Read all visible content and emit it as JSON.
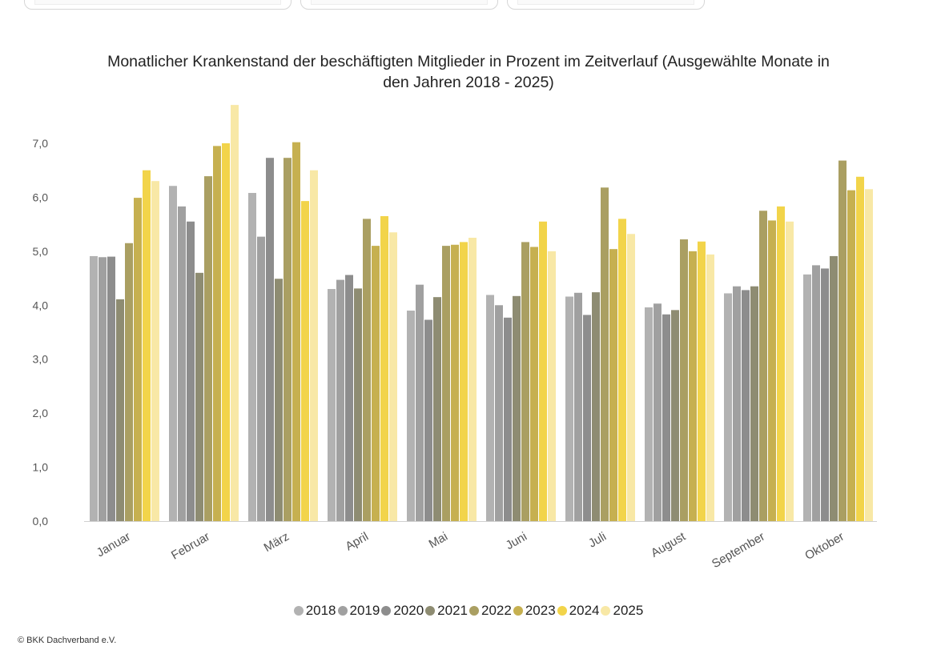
{
  "chart_data": {
    "type": "bar",
    "title": "Monatlicher Krankenstand der beschäftigten Mitglieder in Prozent im Zeitverlauf (Ausgewählte Monate in den Jahren 2018 - 2025)",
    "title_lines": [
      "Monatlicher Krankenstand der beschäftigten Mitglieder in Prozent im Zeitverlauf (Ausgewählte Monate in",
      "den Jahren 2018 - 2025)"
    ],
    "xlabel": "",
    "ylabel": "",
    "ylim": [
      0,
      7.7
    ],
    "yticks": [
      "0,0",
      "1,0",
      "2,0",
      "3,0",
      "4,0",
      "5,0",
      "6,0",
      "7,0"
    ],
    "grid": false,
    "legend_position": "bottom",
    "categories": [
      "Januar",
      "Februar",
      "März",
      "April",
      "Mai",
      "Juni",
      "Juli",
      "August",
      "September",
      "Oktober"
    ],
    "series": [
      {
        "name": "2018",
        "color": "#b2b2b2",
        "values": [
          4.91,
          6.21,
          6.08,
          4.3,
          3.9,
          4.19,
          4.16,
          3.96,
          4.22,
          4.57
        ]
      },
      {
        "name": "2019",
        "color": "#a0a0a0",
        "values": [
          4.89,
          5.83,
          5.27,
          4.47,
          4.38,
          4.0,
          4.23,
          4.03,
          4.35,
          4.74
        ]
      },
      {
        "name": "2020",
        "color": "#8d8d8d",
        "values": [
          4.9,
          5.55,
          6.73,
          4.56,
          3.73,
          3.77,
          3.82,
          3.83,
          4.28,
          4.68
        ]
      },
      {
        "name": "2021",
        "color": "#8e8c72",
        "values": [
          4.11,
          4.6,
          4.49,
          4.31,
          4.15,
          4.17,
          4.24,
          3.91,
          4.35,
          4.91
        ]
      },
      {
        "name": "2022",
        "color": "#aa9f62",
        "values": [
          5.15,
          6.39,
          6.73,
          5.6,
          5.1,
          5.17,
          6.18,
          5.22,
          5.75,
          6.68
        ]
      },
      {
        "name": "2023",
        "color": "#c6b050",
        "values": [
          5.99,
          6.95,
          7.02,
          5.1,
          5.12,
          5.08,
          5.04,
          5.0,
          5.57,
          6.13
        ]
      },
      {
        "name": "2024",
        "color": "#f2d44a",
        "values": [
          6.5,
          7.0,
          5.93,
          5.65,
          5.17,
          5.55,
          5.6,
          5.18,
          5.83,
          6.38
        ]
      },
      {
        "name": "2025",
        "color": "#f8e8a6",
        "values": [
          6.3,
          7.71,
          6.5,
          5.35,
          5.25,
          5.0,
          5.32,
          4.94,
          5.55,
          6.15
        ]
      }
    ]
  },
  "footer": {
    "copyright": "© BKK Dachverband e.V."
  }
}
